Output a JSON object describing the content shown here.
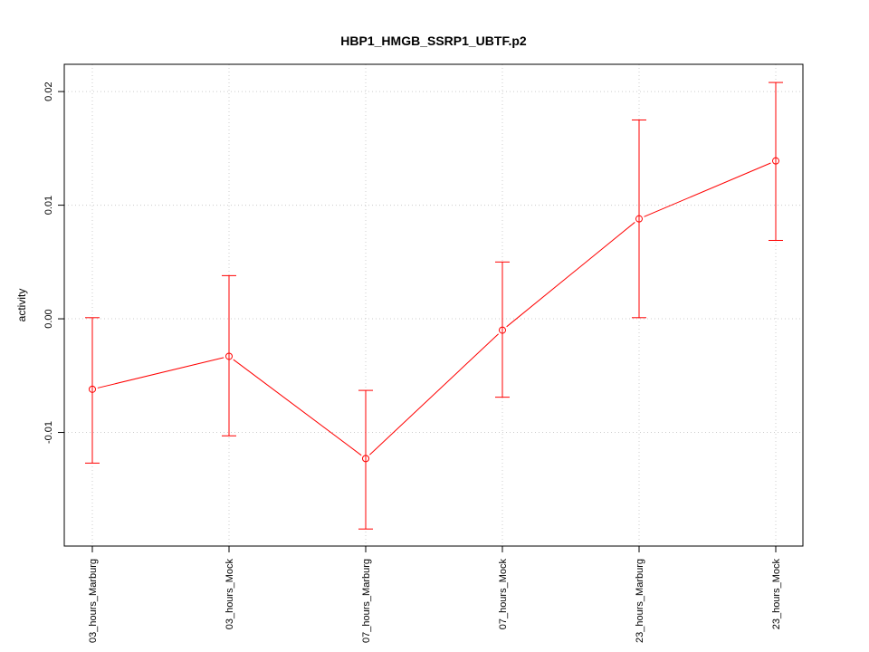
{
  "chart_data": {
    "type": "line",
    "title": "HBP1_HMGB_SSRP1_UBTF.p2",
    "xlabel": "",
    "ylabel": "activity",
    "categories": [
      "03_hours_Marburg",
      "03_hours_Mock",
      "07_hours_Marburg",
      "07_hours_Mock",
      "23_hours_Marburg",
      "23_hours_Mock"
    ],
    "values": [
      -0.0062,
      -0.0033,
      -0.0123,
      -0.001,
      0.0088,
      0.0139
    ],
    "error_upper": [
      0.0001,
      0.0038,
      -0.0063,
      0.005,
      0.0175,
      0.0208
    ],
    "error_lower": [
      -0.0127,
      -0.0103,
      -0.0185,
      -0.0069,
      0.0001,
      0.0069
    ],
    "ylim": [
      -0.02,
      0.0224
    ],
    "yticks": [
      -0.01,
      0.0,
      0.01,
      0.02
    ],
    "ytick_labels": [
      "-0.01",
      "0.00",
      "0.01",
      "0.02"
    ],
    "grid": true,
    "colors": {
      "series": "#ff0000",
      "grid": "#cccccc",
      "axis": "#000000"
    }
  }
}
